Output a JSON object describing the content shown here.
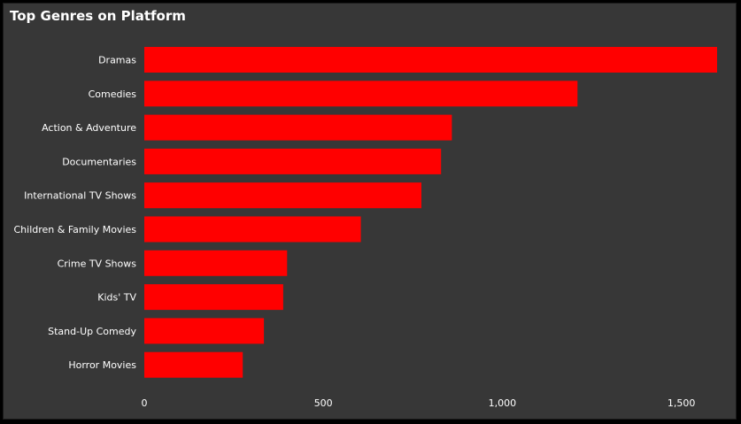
{
  "chart_data": {
    "type": "bar",
    "orientation": "horizontal",
    "title": "Top Genres on Platform",
    "categories": [
      "Dramas",
      "Comedies",
      "Action & Adventure",
      "Documentaries",
      "International TV Shows",
      "Children & Family Movies",
      "Crime TV Shows",
      "Kids' TV",
      "Stand-Up Comedy",
      "Horror Movies"
    ],
    "values": [
      1600,
      1210,
      859,
      829,
      774,
      605,
      399,
      388,
      334,
      275
    ],
    "xlim": [
      0,
      1600
    ],
    "xticks": [
      0,
      500,
      1000,
      1500
    ],
    "xtick_labels": [
      "0",
      "500",
      "1,000",
      "1,500"
    ],
    "xlabel": "",
    "ylabel": "",
    "grid": false,
    "legend": "none",
    "bar_color": "#ff0000"
  },
  "colors": {
    "background": "#373737",
    "frame": "#000000",
    "text": "#ffffff"
  }
}
